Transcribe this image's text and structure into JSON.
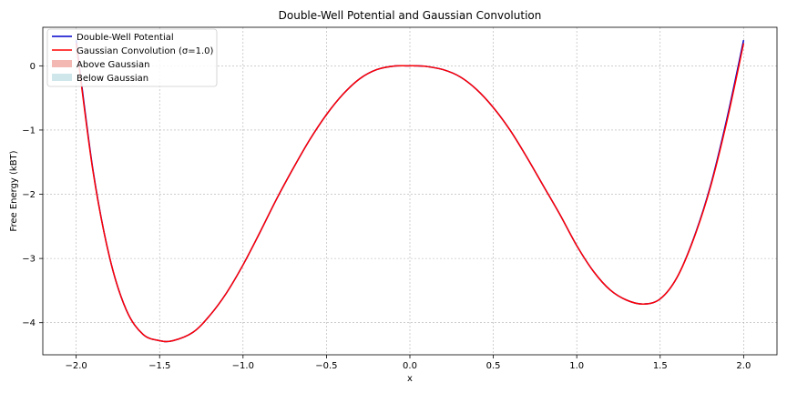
{
  "chart_data": {
    "type": "line",
    "title": "Double-Well Potential and Gaussian Convolution",
    "xlabel": "x",
    "ylabel": "Free Energy (kBT)",
    "xlim": [
      -2.2,
      2.2
    ],
    "ylim": [
      -4.5,
      0.6
    ],
    "xticks": [
      -2.0,
      -1.5,
      -1.0,
      -0.5,
      0.0,
      0.5,
      1.0,
      1.5,
      2.0
    ],
    "xtick_labels": [
      "−2.0",
      "−1.5",
      "−1.0",
      "−0.5",
      "0.0",
      "0.5",
      "1.0",
      "1.5",
      "2.0"
    ],
    "yticks": [
      0,
      -1,
      -2,
      -3,
      -4
    ],
    "ytick_labels": [
      "0",
      "−1",
      "−2",
      "−3",
      "−4"
    ],
    "grid": true,
    "legend_position": "top-left",
    "x": [
      -2.0,
      -1.9,
      -1.8,
      -1.7,
      -1.6,
      -1.5,
      -1.42,
      -1.3,
      -1.2,
      -1.1,
      -1.0,
      -0.9,
      -0.8,
      -0.7,
      -0.6,
      -0.5,
      -0.4,
      -0.3,
      -0.2,
      -0.1,
      0.0,
      0.03,
      0.1,
      0.2,
      0.3,
      0.4,
      0.5,
      0.6,
      0.7,
      0.8,
      0.9,
      1.0,
      1.1,
      1.2,
      1.3,
      1.4,
      1.5,
      1.6,
      1.7,
      1.8,
      1.9,
      2.0
    ],
    "series": [
      {
        "name": "Double-Well Potential",
        "color": "#0000cc",
        "values": [
          0.4,
          -1.61,
          -2.98,
          -3.8,
          -4.18,
          -4.28,
          -4.28,
          -4.15,
          -3.89,
          -3.54,
          -3.1,
          -2.6,
          -2.08,
          -1.6,
          -1.15,
          -0.76,
          -0.44,
          -0.2,
          -0.06,
          -0.005,
          0.0,
          0.0,
          -0.01,
          -0.06,
          -0.17,
          -0.37,
          -0.65,
          -1.0,
          -1.42,
          -1.87,
          -2.32,
          -2.8,
          -3.2,
          -3.49,
          -3.65,
          -3.71,
          -3.63,
          -3.3,
          -2.69,
          -1.88,
          -0.82,
          0.4
        ]
      },
      {
        "name": "Gaussian Convolution (σ=1.0)",
        "color": "#ff0000",
        "values": [
          0.35,
          -1.63,
          -2.98,
          -3.8,
          -4.18,
          -4.28,
          -4.28,
          -4.15,
          -3.89,
          -3.54,
          -3.1,
          -2.6,
          -2.08,
          -1.6,
          -1.15,
          -0.76,
          -0.44,
          -0.2,
          -0.06,
          -0.005,
          0.0,
          0.0,
          -0.01,
          -0.06,
          -0.17,
          -0.37,
          -0.65,
          -1.0,
          -1.42,
          -1.87,
          -2.32,
          -2.8,
          -3.2,
          -3.49,
          -3.65,
          -3.71,
          -3.63,
          -3.3,
          -2.7,
          -1.9,
          -0.86,
          0.35
        ]
      }
    ],
    "legend": [
      {
        "label": "Double-Well Potential",
        "kind": "line",
        "color": "#0000cc"
      },
      {
        "label": "Gaussian Convolution (σ=1.0)",
        "kind": "line",
        "color": "#ff0000"
      },
      {
        "label": "Above Gaussian",
        "kind": "patch",
        "color": "#f4b8b2"
      },
      {
        "label": "Below Gaussian",
        "kind": "patch",
        "color": "#cfe6ea"
      }
    ]
  }
}
